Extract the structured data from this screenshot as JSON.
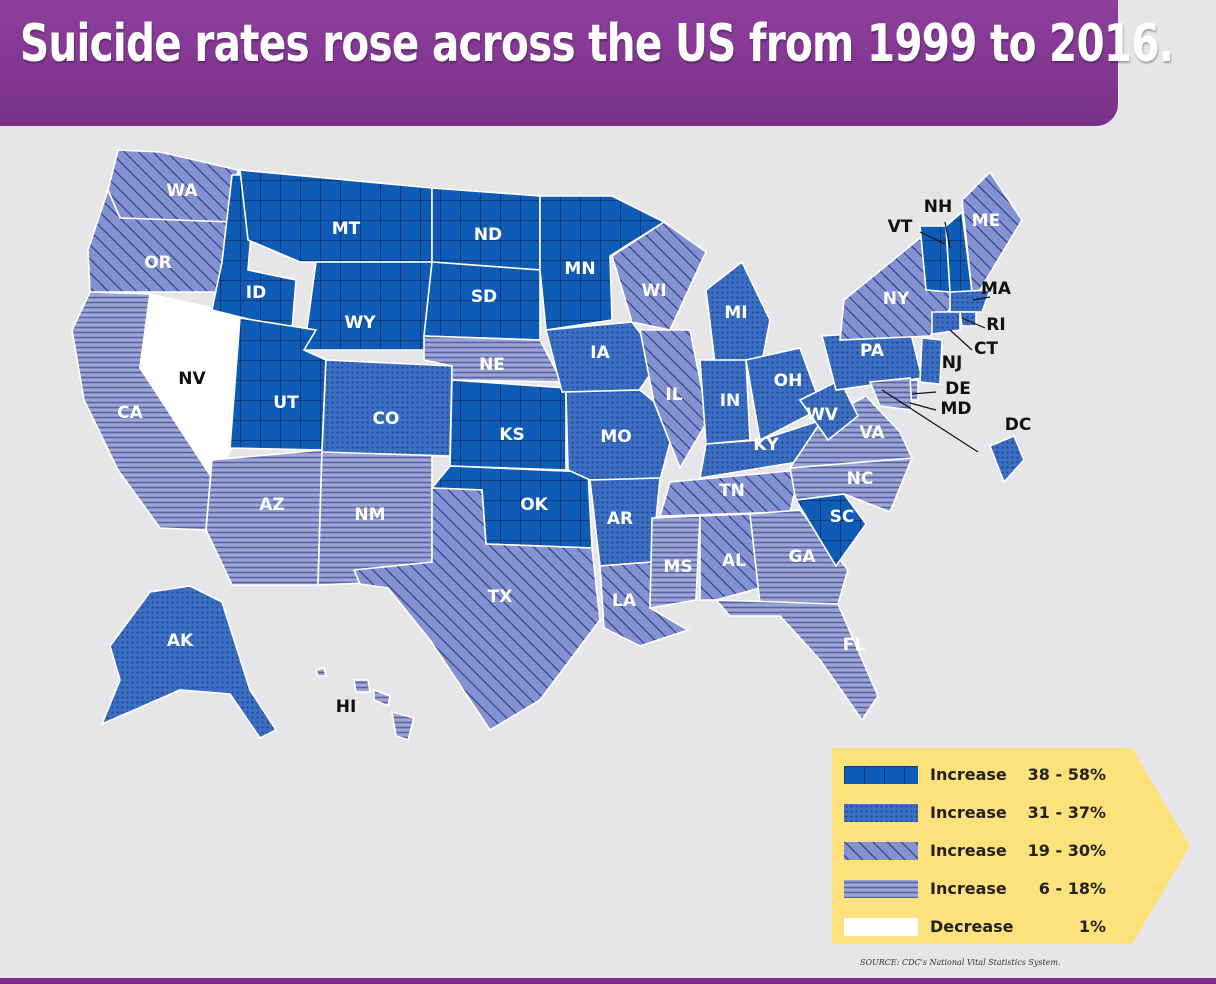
{
  "title": "Suicide rates rose across the US from 1999 to 2016.",
  "colors": {
    "banner": "#8e3f9c",
    "dark_blue": "#0f5cb6",
    "mid_blue": "#3263b8",
    "light_slate": "#7b87c2",
    "pale_slate": "#8e98c7",
    "white": "#ffffff",
    "legend_yellow": "#fde27c"
  },
  "categories": [
    {
      "id": "c1",
      "label": "Increase",
      "range": "38 - 58%",
      "pattern": "grid"
    },
    {
      "id": "c2",
      "label": "Increase",
      "range": "31 - 37%",
      "pattern": "dots"
    },
    {
      "id": "c3",
      "label": "Increase",
      "range": "19 - 30%",
      "pattern": "diagonal"
    },
    {
      "id": "c4",
      "label": "Increase",
      "range": "6 - 18%",
      "pattern": "horizontal"
    },
    {
      "id": "c5",
      "label": "Decrease",
      "range": "1%",
      "pattern": "white"
    }
  ],
  "states": {
    "WA": "c3",
    "OR": "c3",
    "CA": "c4",
    "NV": "c5",
    "ID": "c1",
    "MT": "c1",
    "WY": "c1",
    "UT": "c1",
    "AZ": "c4",
    "NM": "c4",
    "CO": "c2",
    "ND": "c1",
    "SD": "c1",
    "NE": "c4",
    "KS": "c1",
    "OK": "c1",
    "TX": "c3",
    "MN": "c1",
    "IA": "c2",
    "MO": "c2",
    "AR": "c2",
    "LA": "c3",
    "WI": "c3",
    "IL": "c3",
    "MI": "c2",
    "IN": "c2",
    "OH": "c2",
    "KY": "c2",
    "TN": "c3",
    "MS": "c4",
    "AL": "c3",
    "GA": "c4",
    "FL": "c4",
    "SC": "c1",
    "NC": "c4",
    "VA": "c4",
    "WV": "c2",
    "PA": "c2",
    "NY": "c3",
    "VT": "c1",
    "NH": "c1",
    "ME": "c3",
    "MA": "c2",
    "RI": "c2",
    "CT": "c2",
    "NJ": "c2",
    "DE": "c4",
    "MD": "c4",
    "DC": "c2",
    "AK": "c2",
    "HI": "c4"
  },
  "labels": [
    "WA",
    "OR",
    "CA",
    "NV",
    "ID",
    "MT",
    "WY",
    "UT",
    "AZ",
    "NM",
    "CO",
    "ND",
    "SD",
    "NE",
    "KS",
    "OK",
    "TX",
    "MN",
    "IA",
    "MO",
    "AR",
    "LA",
    "WI",
    "IL",
    "MI",
    "IN",
    "OH",
    "KY",
    "TN",
    "MS",
    "AL",
    "GA",
    "FL",
    "SC",
    "NC",
    "VA",
    "WV",
    "PA",
    "NY",
    "VT",
    "NH",
    "ME",
    "MA",
    "RI",
    "CT",
    "NJ",
    "DE",
    "MD",
    "DC",
    "AK",
    "HI"
  ],
  "source": "SOURCE: CDC's National Vital Statistics System."
}
